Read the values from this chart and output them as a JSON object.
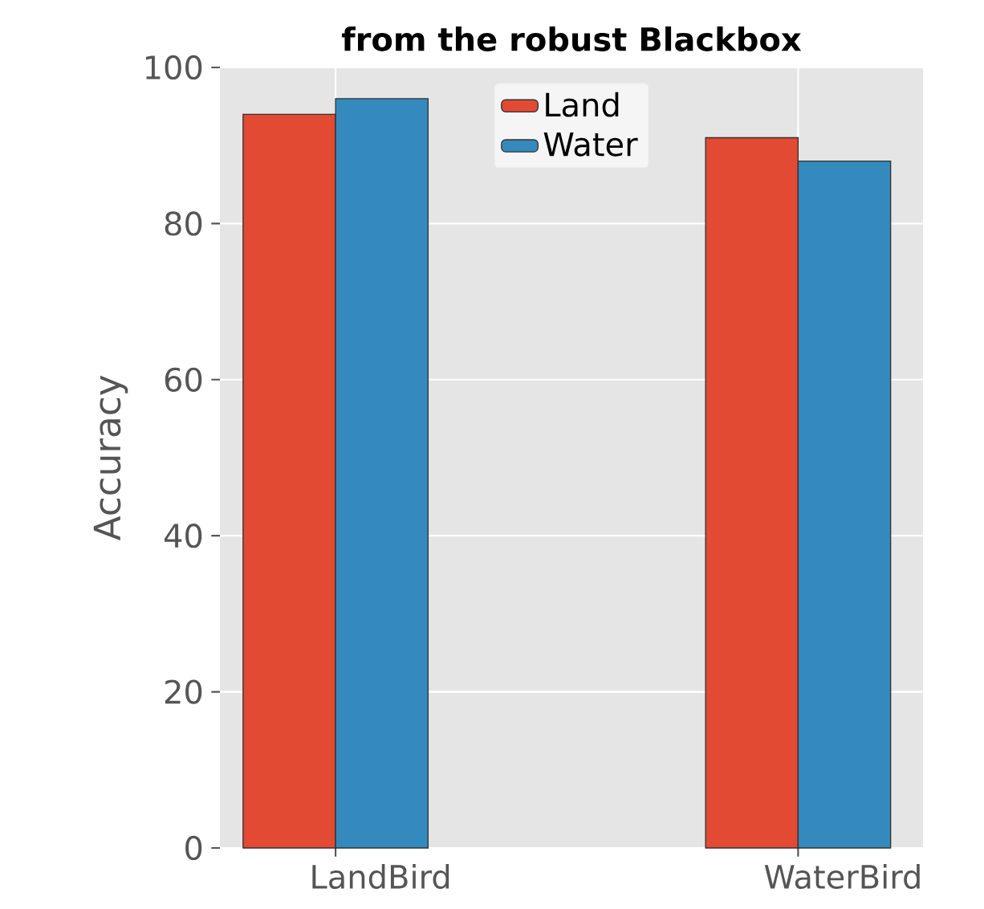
{
  "chart_data": {
    "type": "bar",
    "title": "from the robust Blackbox",
    "ylabel": "Accuracy",
    "categories": [
      "LandBird",
      "WaterBird"
    ],
    "series": [
      {
        "name": "Land",
        "color": "#e24a33",
        "values": [
          94,
          91
        ]
      },
      {
        "name": "Water",
        "color": "#348abd",
        "values": [
          96,
          88
        ]
      }
    ],
    "ylim": [
      0,
      100
    ],
    "yticks": [
      0,
      20,
      40,
      60,
      80,
      100
    ],
    "grid": true,
    "legend": "top"
  }
}
